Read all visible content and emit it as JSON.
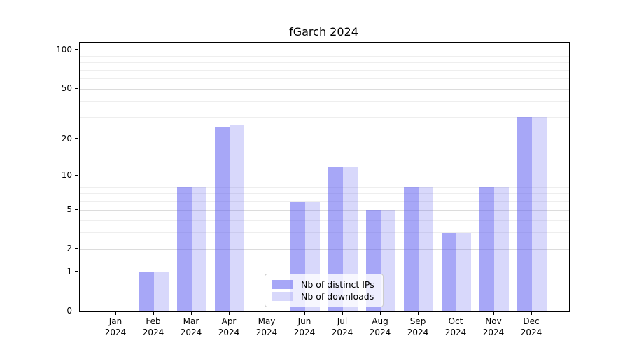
{
  "chart_data": {
    "type": "bar",
    "title": "fGarch 2024",
    "categories": [
      "Jan",
      "Feb",
      "Mar",
      "Apr",
      "May",
      "Jun",
      "Jul",
      "Aug",
      "Sep",
      "Oct",
      "Nov",
      "Dec"
    ],
    "category_year": "2024",
    "series": [
      {
        "name": "Nb of distinct IPs",
        "values": [
          0,
          1,
          8,
          25,
          0,
          6,
          12,
          5,
          8,
          3,
          8,
          30
        ],
        "color": "rgba(93,93,240,0.54)"
      },
      {
        "name": "Nb of downloads",
        "values": [
          0,
          1,
          8,
          26,
          0,
          6,
          12,
          5,
          8,
          3,
          8,
          30
        ],
        "color": "rgba(93,93,240,0.24)"
      }
    ],
    "yscale": "log1p",
    "ylim": [
      0,
      114.5
    ],
    "yticks": [
      0,
      1,
      2,
      5,
      10,
      20,
      50,
      100
    ],
    "yticks_minor": [
      3,
      4,
      6,
      7,
      8,
      9,
      30,
      40,
      60,
      70,
      80,
      90
    ],
    "yticks_emphasized": [
      1,
      10,
      100
    ],
    "grid": true,
    "legend_position": "lower-center-inside",
    "colors": {
      "bar_distinct_ips_rendered": "#a8a8f4",
      "bar_downloads_rendered": "#d8d8f8",
      "grid_major_emphasized": "#b9b9b9",
      "grid_major": "#dcdcdc",
      "grid_minor": "#eeeeee",
      "spine": "#000000",
      "text": "#000000",
      "legend_border": "#cccccc"
    }
  }
}
